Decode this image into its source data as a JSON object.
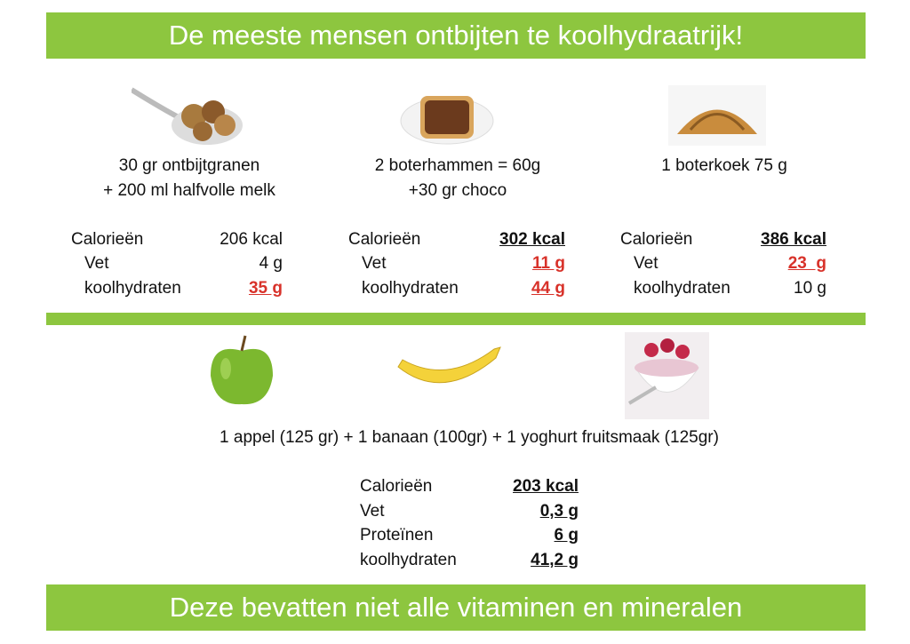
{
  "header": {
    "title": "De meeste mensen ontbijten te koolhydraatrijk!"
  },
  "items": [
    {
      "description": [
        "30 gr ontbijtgranen",
        "+ 200 ml halfvolle melk"
      ],
      "nutrition": [
        {
          "label": "Calorieën",
          "value": "206 kcal",
          "emphasis": "none"
        },
        {
          "label": "Vet",
          "value": "4 g",
          "emphasis": "none"
        },
        {
          "label": "koolhydraten",
          "value": "35 g",
          "emphasis": "red"
        }
      ]
    },
    {
      "description": [
        "2 boterhammen = 60g",
        "+30 gr choco"
      ],
      "nutrition": [
        {
          "label": "Calorieën",
          "value": "302 kcal",
          "emphasis": "bold"
        },
        {
          "label": "Vet",
          "value": "11 g",
          "emphasis": "red"
        },
        {
          "label": "koolhydraten",
          "value": "44 g",
          "emphasis": "red"
        }
      ]
    },
    {
      "description": [
        "1 boterkoek 75 g"
      ],
      "nutrition": [
        {
          "label": "Calorieën",
          "value": "386 kcal",
          "emphasis": "bold"
        },
        {
          "label": "Vet",
          "value": "23  g",
          "emphasis": "red"
        },
        {
          "label": "koolhydraten",
          "value": "10 g",
          "emphasis": "none"
        }
      ]
    }
  ],
  "combo": {
    "description": "1 appel (125 gr) + 1 banaan (100gr) + 1 yoghurt fruitsmaak (125gr)",
    "nutrition": [
      {
        "label": "Calorieën",
        "value": "203 kcal",
        "emphasis": "bold"
      },
      {
        "label": "Vet",
        "value": "0,3 g",
        "emphasis": "bold"
      },
      {
        "label": "Proteïnen",
        "value": "6 g",
        "emphasis": "bold"
      },
      {
        "label": "koolhydraten",
        "value": "41,2 g",
        "emphasis": "bold"
      }
    ]
  },
  "footer": {
    "title": "Deze bevatten niet alle vitaminen en mineralen"
  }
}
